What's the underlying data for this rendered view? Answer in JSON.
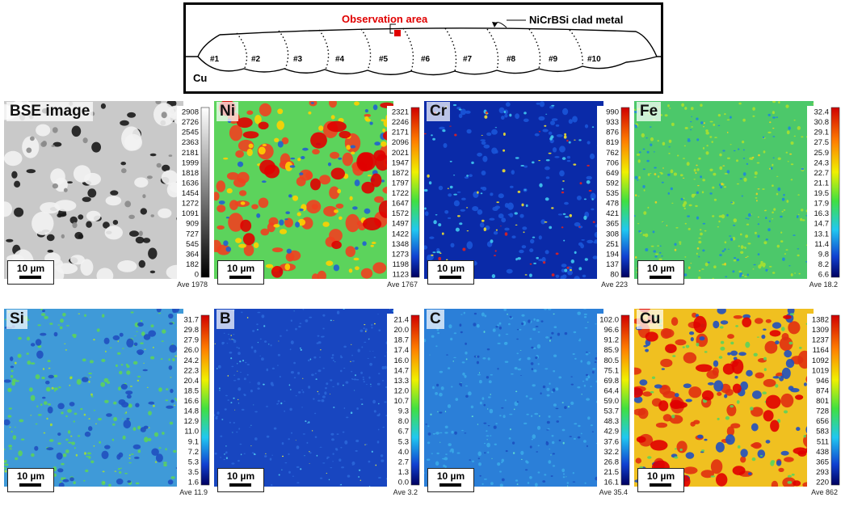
{
  "schematic": {
    "observation_label": "Observation area",
    "clad_label": "NiCrBSi clad metal",
    "base_label": "Cu",
    "beads": [
      "#1",
      "#2",
      "#3",
      "#4",
      "#5",
      "#6",
      "#7",
      "#8",
      "#9",
      "#10"
    ],
    "colors": {
      "observation": "#e00000",
      "line": "#000000"
    }
  },
  "scale_bar": "10 µm",
  "panels": [
    {
      "title": "BSE image",
      "ave": "Ave 1978",
      "kind": "bse",
      "ticks": [
        "2908",
        "2726",
        "2545",
        "2363",
        "2181",
        "1999",
        "1818",
        "1636",
        "1454",
        "1272",
        "1091",
        "909",
        "727",
        "545",
        "364",
        "182",
        "0"
      ]
    },
    {
      "title": "Ni",
      "ave": "Ave 1767",
      "kind": "ni",
      "ticks": [
        "2321",
        "2246",
        "2171",
        "2096",
        "2021",
        "1947",
        "1872",
        "1797",
        "1722",
        "1647",
        "1572",
        "1497",
        "1422",
        "1348",
        "1273",
        "1198",
        "1123"
      ]
    },
    {
      "title": "Cr",
      "ave": "Ave 223",
      "kind": "cr",
      "ticks": [
        "990",
        "933",
        "876",
        "819",
        "762",
        "706",
        "649",
        "592",
        "535",
        "478",
        "421",
        "365",
        "308",
        "251",
        "194",
        "137",
        "80"
      ]
    },
    {
      "title": "Fe",
      "ave": "Ave 18.2",
      "kind": "fe",
      "ticks": [
        "32.4",
        "30.8",
        "29.1",
        "27.5",
        "25.9",
        "24.3",
        "22.7",
        "21.1",
        "19.5",
        "17.9",
        "16.3",
        "14.7",
        "13.1",
        "11.4",
        "9.8",
        "8.2",
        "6.6"
      ]
    },
    {
      "title": "Si",
      "ave": "Ave 11.9",
      "kind": "si",
      "ticks": [
        "31.7",
        "29.8",
        "27.9",
        "26.0",
        "24.2",
        "22.3",
        "20.4",
        "18.5",
        "16.6",
        "14.8",
        "12.9",
        "11.0",
        "9.1",
        "7.2",
        "5.3",
        "3.5",
        "1.6"
      ]
    },
    {
      "title": "B",
      "ave": "Ave 3.2",
      "kind": "b",
      "ticks": [
        "21.4",
        "20.0",
        "18.7",
        "17.4",
        "16.0",
        "14.7",
        "13.3",
        "12.0",
        "10.7",
        "9.3",
        "8.0",
        "6.7",
        "5.3",
        "4.0",
        "2.7",
        "1.3",
        "0.0"
      ]
    },
    {
      "title": "C",
      "ave": "Ave 35.4",
      "kind": "c",
      "ticks": [
        "102.0",
        "96.6",
        "91.2",
        "85.9",
        "80.5",
        "75.1",
        "69.8",
        "64.4",
        "59.0",
        "53.7",
        "48.3",
        "42.9",
        "37.6",
        "32.2",
        "26.8",
        "21.5",
        "16.1"
      ]
    },
    {
      "title": "Cu",
      "ave": "Ave 862",
      "kind": "cu",
      "ticks": [
        "1382",
        "1309",
        "1237",
        "1164",
        "1092",
        "1019",
        "946",
        "874",
        "801",
        "728",
        "656",
        "583",
        "511",
        "438",
        "365",
        "293",
        "220"
      ]
    }
  ]
}
